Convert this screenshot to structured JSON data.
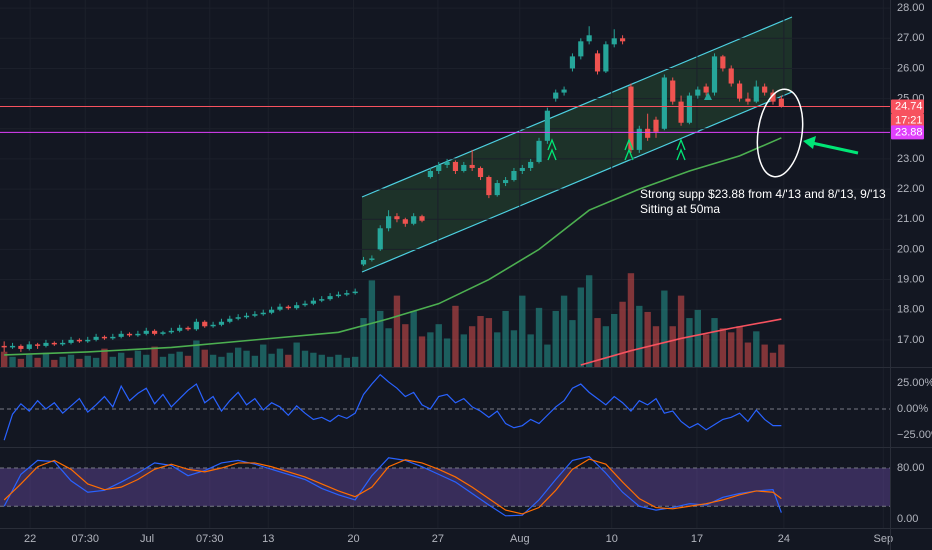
{
  "chart_data": [
    {
      "type": "candlestick",
      "up_color": "#26a69a",
      "down_color": "#ef5350",
      "xlim": [
        -0.5,
        106
      ],
      "ylim": [
        16.1,
        28.27
      ],
      "grid": true,
      "yticks": [
        {
          "value": 17,
          "label": "17.00"
        },
        {
          "value": 18,
          "label": "18.00"
        },
        {
          "value": 19,
          "label": "19.00"
        },
        {
          "value": 20,
          "label": "20.00"
        },
        {
          "value": 21,
          "label": "21.00"
        },
        {
          "value": 22,
          "label": "22.00"
        },
        {
          "value": 23,
          "label": "23.00"
        },
        {
          "value": 24,
          "label": "24.00"
        },
        {
          "value": 25,
          "label": "25.00"
        },
        {
          "value": 26,
          "label": "26.00"
        },
        {
          "value": 27,
          "label": "27.00"
        },
        {
          "value": 28,
          "label": "28.00"
        }
      ],
      "xticks": [
        {
          "value": 3.1,
          "label": "22"
        },
        {
          "value": 9.7,
          "label": "07:30"
        },
        {
          "value": 17.1,
          "label": "Jul"
        },
        {
          "value": 24.6,
          "label": "07:30"
        },
        {
          "value": 31.6,
          "label": "13"
        },
        {
          "value": 41.8,
          "label": "20"
        },
        {
          "value": 51.9,
          "label": "27"
        },
        {
          "value": 61.7,
          "label": "Aug"
        },
        {
          "value": 72.7,
          "label": "10"
        },
        {
          "value": 82.9,
          "label": "17"
        },
        {
          "value": 93.3,
          "label": "24"
        },
        {
          "value": 105.2,
          "label": "Sep"
        }
      ],
      "ohlc": [
        [
          16.8,
          16.95,
          16.6,
          16.75
        ],
        [
          16.75,
          16.9,
          16.7,
          16.8
        ],
        [
          16.8,
          16.85,
          16.6,
          16.7
        ],
        [
          16.7,
          16.95,
          16.65,
          16.85
        ],
        [
          16.85,
          16.9,
          16.7,
          16.8
        ],
        [
          16.8,
          17.0,
          16.75,
          16.9
        ],
        [
          16.9,
          16.95,
          16.8,
          16.85
        ],
        [
          16.85,
          17.0,
          16.8,
          16.9
        ],
        [
          16.9,
          17.1,
          16.85,
          17.0
        ],
        [
          17.0,
          17.05,
          16.9,
          16.95
        ],
        [
          16.95,
          17.1,
          16.9,
          17.0
        ],
        [
          17.0,
          17.2,
          16.95,
          17.1
        ],
        [
          17.1,
          17.15,
          17.0,
          17.05
        ],
        [
          17.05,
          17.2,
          17.0,
          17.1
        ],
        [
          17.1,
          17.3,
          17.05,
          17.2
        ],
        [
          17.2,
          17.25,
          17.1,
          17.15
        ],
        [
          17.15,
          17.3,
          17.1,
          17.2
        ],
        [
          17.2,
          17.4,
          17.15,
          17.3
        ],
        [
          17.3,
          17.35,
          17.15,
          17.2
        ],
        [
          17.2,
          17.3,
          17.15,
          17.25
        ],
        [
          17.25,
          17.4,
          17.2,
          17.3
        ],
        [
          17.3,
          17.5,
          17.25,
          17.4
        ],
        [
          17.4,
          17.45,
          17.3,
          17.35
        ],
        [
          17.35,
          17.7,
          17.3,
          17.6
        ],
        [
          17.6,
          17.65,
          17.4,
          17.45
        ],
        [
          17.45,
          17.6,
          17.4,
          17.5
        ],
        [
          17.5,
          17.7,
          17.45,
          17.6
        ],
        [
          17.6,
          17.8,
          17.55,
          17.7
        ],
        [
          17.7,
          17.85,
          17.65,
          17.75
        ],
        [
          17.75,
          17.9,
          17.7,
          17.8
        ],
        [
          17.8,
          17.95,
          17.75,
          17.85
        ],
        [
          17.85,
          18.0,
          17.8,
          17.9
        ],
        [
          17.9,
          18.1,
          17.85,
          18.0
        ],
        [
          18.0,
          18.2,
          17.95,
          18.1
        ],
        [
          18.1,
          18.15,
          18.0,
          18.05
        ],
        [
          18.05,
          18.25,
          18.0,
          18.15
        ],
        [
          18.15,
          18.3,
          18.1,
          18.2
        ],
        [
          18.2,
          18.4,
          18.15,
          18.3
        ],
        [
          18.3,
          18.45,
          18.25,
          18.35
        ],
        [
          18.35,
          18.55,
          18.3,
          18.45
        ],
        [
          18.45,
          18.6,
          18.4,
          18.5
        ],
        [
          18.5,
          18.65,
          18.45,
          18.55
        ],
        [
          18.55,
          18.7,
          18.5,
          18.6
        ],
        [
          19.5,
          19.75,
          19.45,
          19.65
        ],
        [
          19.65,
          19.8,
          19.6,
          19.7
        ],
        [
          20.0,
          20.8,
          19.95,
          20.7
        ],
        [
          20.7,
          21.3,
          20.6,
          21.1
        ],
        [
          21.1,
          21.2,
          20.9,
          21.0
        ],
        [
          21.0,
          21.05,
          20.75,
          20.85
        ],
        [
          20.85,
          21.2,
          20.8,
          21.1
        ],
        [
          21.1,
          21.15,
          20.9,
          20.95
        ],
        [
          22.4,
          22.7,
          22.35,
          22.6
        ],
        [
          22.6,
          22.9,
          22.5,
          22.8
        ],
        [
          22.8,
          23.0,
          22.7,
          22.9
        ],
        [
          22.9,
          22.95,
          22.5,
          22.6
        ],
        [
          22.6,
          22.9,
          22.55,
          22.8
        ],
        [
          22.8,
          23.3,
          22.6,
          22.7
        ],
        [
          22.7,
          22.75,
          22.3,
          22.4
        ],
        [
          22.4,
          22.45,
          21.7,
          21.8
        ],
        [
          21.8,
          22.3,
          21.75,
          22.2
        ],
        [
          22.2,
          22.4,
          22.1,
          22.3
        ],
        [
          22.3,
          22.7,
          22.25,
          22.6
        ],
        [
          22.6,
          22.8,
          22.5,
          22.7
        ],
        [
          22.7,
          23.0,
          22.6,
          22.9
        ],
        [
          22.9,
          23.7,
          22.85,
          23.6
        ],
        [
          23.6,
          24.7,
          23.5,
          24.6
        ],
        [
          25.0,
          25.3,
          24.9,
          25.2
        ],
        [
          25.2,
          25.4,
          25.1,
          25.3
        ],
        [
          26.0,
          26.5,
          25.9,
          26.4
        ],
        [
          26.4,
          27.0,
          26.3,
          26.9
        ],
        [
          26.9,
          27.4,
          26.8,
          27.1
        ],
        [
          26.5,
          26.6,
          25.8,
          25.9
        ],
        [
          25.9,
          26.9,
          25.85,
          26.8
        ],
        [
          26.8,
          27.3,
          26.7,
          27.0
        ],
        [
          27.0,
          27.1,
          26.8,
          26.9
        ],
        [
          25.4,
          25.5,
          23.2,
          23.3
        ],
        [
          23.3,
          24.1,
          23.2,
          24.0
        ],
        [
          24.0,
          24.5,
          23.6,
          23.7
        ],
        [
          24.3,
          24.4,
          23.7,
          23.9
        ],
        [
          24.0,
          25.8,
          23.95,
          25.7
        ],
        [
          25.6,
          25.7,
          24.8,
          24.9
        ],
        [
          24.9,
          25.1,
          24.1,
          24.2
        ],
        [
          24.2,
          25.2,
          24.15,
          25.1
        ],
        [
          25.1,
          25.4,
          25.0,
          25.3
        ],
        [
          25.4,
          25.5,
          25.1,
          25.2
        ],
        [
          25.2,
          26.5,
          25.1,
          26.4
        ],
        [
          26.4,
          26.45,
          25.9,
          26.0
        ],
        [
          26.0,
          26.1,
          25.4,
          25.5
        ],
        [
          25.5,
          25.6,
          24.9,
          25.0
        ],
        [
          25.0,
          25.2,
          24.8,
          24.9
        ],
        [
          24.9,
          25.6,
          24.85,
          25.4
        ],
        [
          25.4,
          25.5,
          25.1,
          25.2
        ],
        [
          25.2,
          25.3,
          24.8,
          24.9
        ],
        [
          25.0,
          25.1,
          24.7,
          24.74
        ]
      ],
      "volume_lim": [
        0,
        360
      ],
      "volume": [
        15,
        10,
        8,
        12,
        9,
        14,
        7,
        10,
        12,
        8,
        11,
        9,
        18,
        10,
        14,
        9,
        16,
        12,
        20,
        10,
        13,
        15,
        11,
        26,
        17,
        12,
        10,
        14,
        19,
        16,
        11,
        22,
        13,
        18,
        12,
        24,
        16,
        14,
        12,
        10,
        12,
        9,
        10,
        48,
        85,
        55,
        38,
        70,
        42,
        55,
        30,
        34,
        42,
        28,
        60,
        32,
        40,
        50,
        48,
        34,
        55,
        36,
        70,
        32,
        58,
        22,
        55,
        70,
        46,
        78,
        90,
        48,
        40,
        52,
        64,
        92,
        60,
        54,
        40,
        75,
        40,
        70,
        48,
        56,
        32,
        48,
        38,
        34,
        40,
        24,
        35,
        22,
        14,
        22
      ],
      "overlays": [
        {
          "color": "#4caf50",
          "x": [
            0,
            10,
            20,
            30,
            40,
            46,
            52,
            58,
            64,
            70,
            76,
            82,
            88,
            93
          ],
          "values": [
            16.5,
            16.6,
            16.75,
            17.0,
            17.25,
            17.7,
            18.2,
            19.0,
            20.0,
            21.3,
            22.0,
            22.6,
            23.1,
            23.7
          ]
        },
        {
          "color": "#f7525f",
          "axis": "volume",
          "x": [
            69,
            75,
            81,
            87,
            93
          ],
          "values": [
            2,
            16,
            28,
            38,
            47
          ]
        }
      ],
      "price_lines": [
        {
          "value": 24.74,
          "color": "#f7525f"
        },
        {
          "value": 23.88,
          "color": "#e040fb"
        }
      ],
      "countdown": "17:21",
      "annotation": [
        "Strong supp $23.88 from 4/'13 and 8/'13, 9/'13",
        "Sitting at 50ma"
      ]
    },
    {
      "type": "line",
      "xlim": [
        -0.5,
        106
      ],
      "ylim": [
        -36.5,
        39.4
      ],
      "zero_line": true,
      "yticks": [
        {
          "value": 25,
          "label": "25.00%"
        },
        {
          "value": 0,
          "label": "0.00%"
        },
        {
          "value": -25,
          "label": "−25.00%"
        }
      ],
      "series": [
        {
          "color": "#2962ff",
          "values": [
            -30,
            -5,
            5,
            -2,
            8,
            0,
            6,
            -4,
            3,
            10,
            -3,
            4,
            12,
            2,
            22,
            8,
            15,
            20,
            5,
            14,
            2,
            10,
            18,
            24,
            6,
            12,
            -2,
            8,
            16,
            4,
            10,
            -1,
            6,
            2,
            -6,
            3,
            -4,
            -10,
            -8,
            -12,
            -6,
            -9,
            -4,
            14,
            24,
            33,
            26,
            20,
            12,
            16,
            4,
            0,
            12,
            14,
            6,
            10,
            2,
            -2,
            -8,
            -2,
            -14,
            -18,
            -16,
            -10,
            -14,
            -6,
            2,
            8,
            20,
            24,
            16,
            10,
            4,
            12,
            6,
            -2,
            8,
            4,
            10,
            -4,
            -2,
            -12,
            -18,
            -14,
            -20,
            -15,
            -10,
            -8,
            -4,
            -12,
            -1,
            -10,
            -16,
            -16
          ]
        }
      ]
    },
    {
      "type": "line",
      "xlim": [
        -0.5,
        106
      ],
      "ylim": [
        -14.1,
        111.4
      ],
      "yticks": [
        {
          "value": 80,
          "label": "80.00"
        },
        {
          "value": 0,
          "label": "0.00"
        }
      ],
      "band": [
        20,
        80
      ],
      "band_color": "#7e57c2",
      "x": [
        0,
        2,
        4,
        6,
        8,
        10,
        12,
        14,
        16,
        18,
        20,
        22,
        24,
        26,
        28,
        30,
        32,
        34,
        36,
        38,
        40,
        42,
        44,
        46,
        48,
        50,
        52,
        54,
        56,
        58,
        60,
        62,
        64,
        66,
        68,
        70,
        72,
        74,
        76,
        78,
        80,
        82,
        84,
        86,
        88,
        90,
        92,
        93
      ],
      "series": [
        {
          "color": "#2962ff",
          "values": [
            20,
            70,
            92,
            90,
            60,
            42,
            45,
            58,
            72,
            88,
            84,
            68,
            76,
            88,
            92,
            86,
            78,
            70,
            62,
            48,
            38,
            30,
            68,
            96,
            92,
            82,
            70,
            58,
            40,
            22,
            5,
            6,
            30,
            62,
            92,
            98,
            72,
            42,
            20,
            14,
            18,
            24,
            22,
            34,
            40,
            44,
            46,
            10
          ]
        },
        {
          "color": "#ff6d00",
          "values": [
            30,
            55,
            82,
            92,
            78,
            55,
            46,
            50,
            62,
            78,
            86,
            78,
            74,
            80,
            88,
            88,
            82,
            74,
            66,
            55,
            44,
            35,
            50,
            82,
            93,
            88,
            78,
            66,
            50,
            32,
            14,
            8,
            18,
            45,
            78,
            94,
            86,
            58,
            32,
            18,
            16,
            20,
            24,
            30,
            38,
            44,
            42,
            32
          ]
        }
      ]
    }
  ]
}
